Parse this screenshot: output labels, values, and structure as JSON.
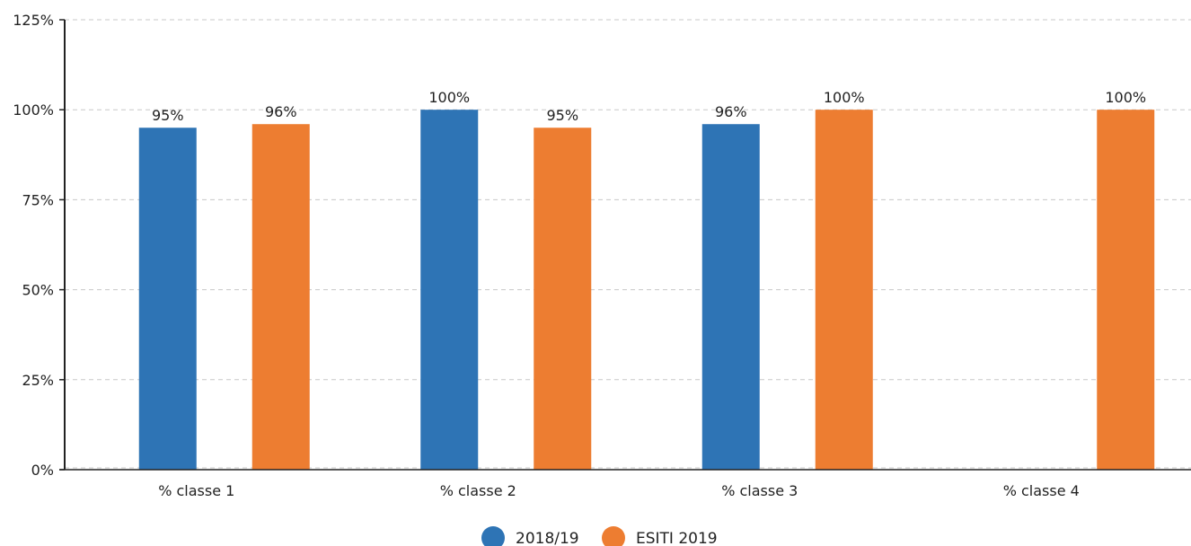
{
  "chart_data": {
    "type": "bar",
    "categories": [
      "% classe 1",
      "% classe 2",
      "% classe 3",
      "% classe 4"
    ],
    "series": [
      {
        "name": "2018/19",
        "values": [
          95,
          100,
          96,
          null
        ],
        "labels": [
          "95%",
          "100%",
          "96%",
          ""
        ]
      },
      {
        "name": "ESITI 2019",
        "values": [
          96,
          95,
          100,
          100
        ],
        "labels": [
          "96%",
          "95%",
          "100%",
          "100%"
        ]
      }
    ],
    "y_ticks": [
      0,
      25,
      50,
      75,
      100,
      125
    ],
    "y_tick_labels": [
      "0%",
      "25%",
      "50%",
      "75%",
      "100%",
      "125%"
    ],
    "ylim": [
      0,
      125
    ],
    "title": "",
    "xlabel": "",
    "ylabel": "",
    "grid": true,
    "legend_position": "bottom-center"
  },
  "colors": {
    "series": [
      "#2e74b5",
      "#ed7d31"
    ],
    "grid": "#c8c8c8",
    "axis": "#222222"
  }
}
